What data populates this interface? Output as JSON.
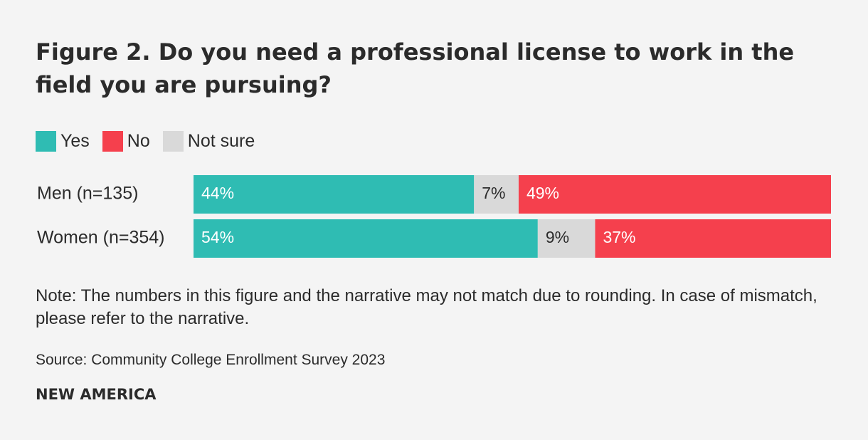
{
  "title": "Figure 2. Do you need a professional license to work in the field you are pursuing?",
  "legend": [
    {
      "label": "Yes",
      "color": "#2fbcb3"
    },
    {
      "label": "No",
      "color": "#f5404d"
    },
    {
      "label": "Not sure",
      "color": "#d9d9d9"
    }
  ],
  "chart_data": {
    "type": "bar",
    "orientation": "horizontal",
    "stacked": true,
    "title": "Figure 2. Do you need a professional license to work in the field you are pursuing?",
    "categories": [
      "Men (n=135)",
      "Women (n=354)"
    ],
    "segment_order": [
      "Yes",
      "Not sure",
      "No"
    ],
    "series": [
      {
        "name": "Yes",
        "values": [
          44,
          54
        ],
        "labels": [
          "44%",
          "54%"
        ],
        "color": "#2fbcb3"
      },
      {
        "name": "Not sure",
        "values": [
          7,
          9
        ],
        "labels": [
          "7%",
          "9%"
        ],
        "color": "#d9d9d9"
      },
      {
        "name": "No",
        "values": [
          49,
          37
        ],
        "labels": [
          "49%",
          "37%"
        ],
        "color": "#f5404d"
      }
    ],
    "xlim": [
      0,
      100
    ],
    "grid": false,
    "legend_position": "top-left"
  },
  "note": "Note: The numbers in this figure and the narrative may not match due to rounding. In case of mismatch, please refer to the narrative.",
  "source": "Source: Community College Enrollment Survey 2023",
  "brand": "NEW AMERICA"
}
